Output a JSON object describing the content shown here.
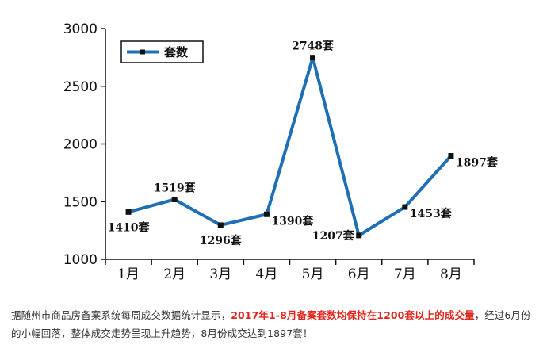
{
  "chart_data": {
    "type": "line",
    "categories": [
      "1月",
      "2月",
      "3月",
      "4月",
      "5月",
      "6月",
      "7月",
      "8月"
    ],
    "series": [
      {
        "name": "套数",
        "values": [
          1410,
          1519,
          1296,
          1390,
          2748,
          1207,
          1453,
          1897
        ],
        "labels": [
          "1410套",
          "1519套",
          "1296套",
          "1390套",
          "2748套",
          "1207套",
          "1453套",
          "1897套"
        ],
        "color": "#1f6fb5"
      }
    ],
    "yticks": [
      "1000",
      "1500",
      "2000",
      "2500",
      "3000"
    ],
    "ylim": [
      1000,
      3000
    ],
    "legend_position": "top-left",
    "grid": false
  },
  "caption": {
    "part1": "据随州市商品房备案系统每周成交数据统计显示，",
    "highlight": "2017年1-8月备案套数均保持在1200套以上的成交量",
    "part2": "，经过6月份的小幅回落，整体成交走势呈现上升趋势，8月份成交达到1897套！",
    "highlight_color": "#e0251c"
  }
}
